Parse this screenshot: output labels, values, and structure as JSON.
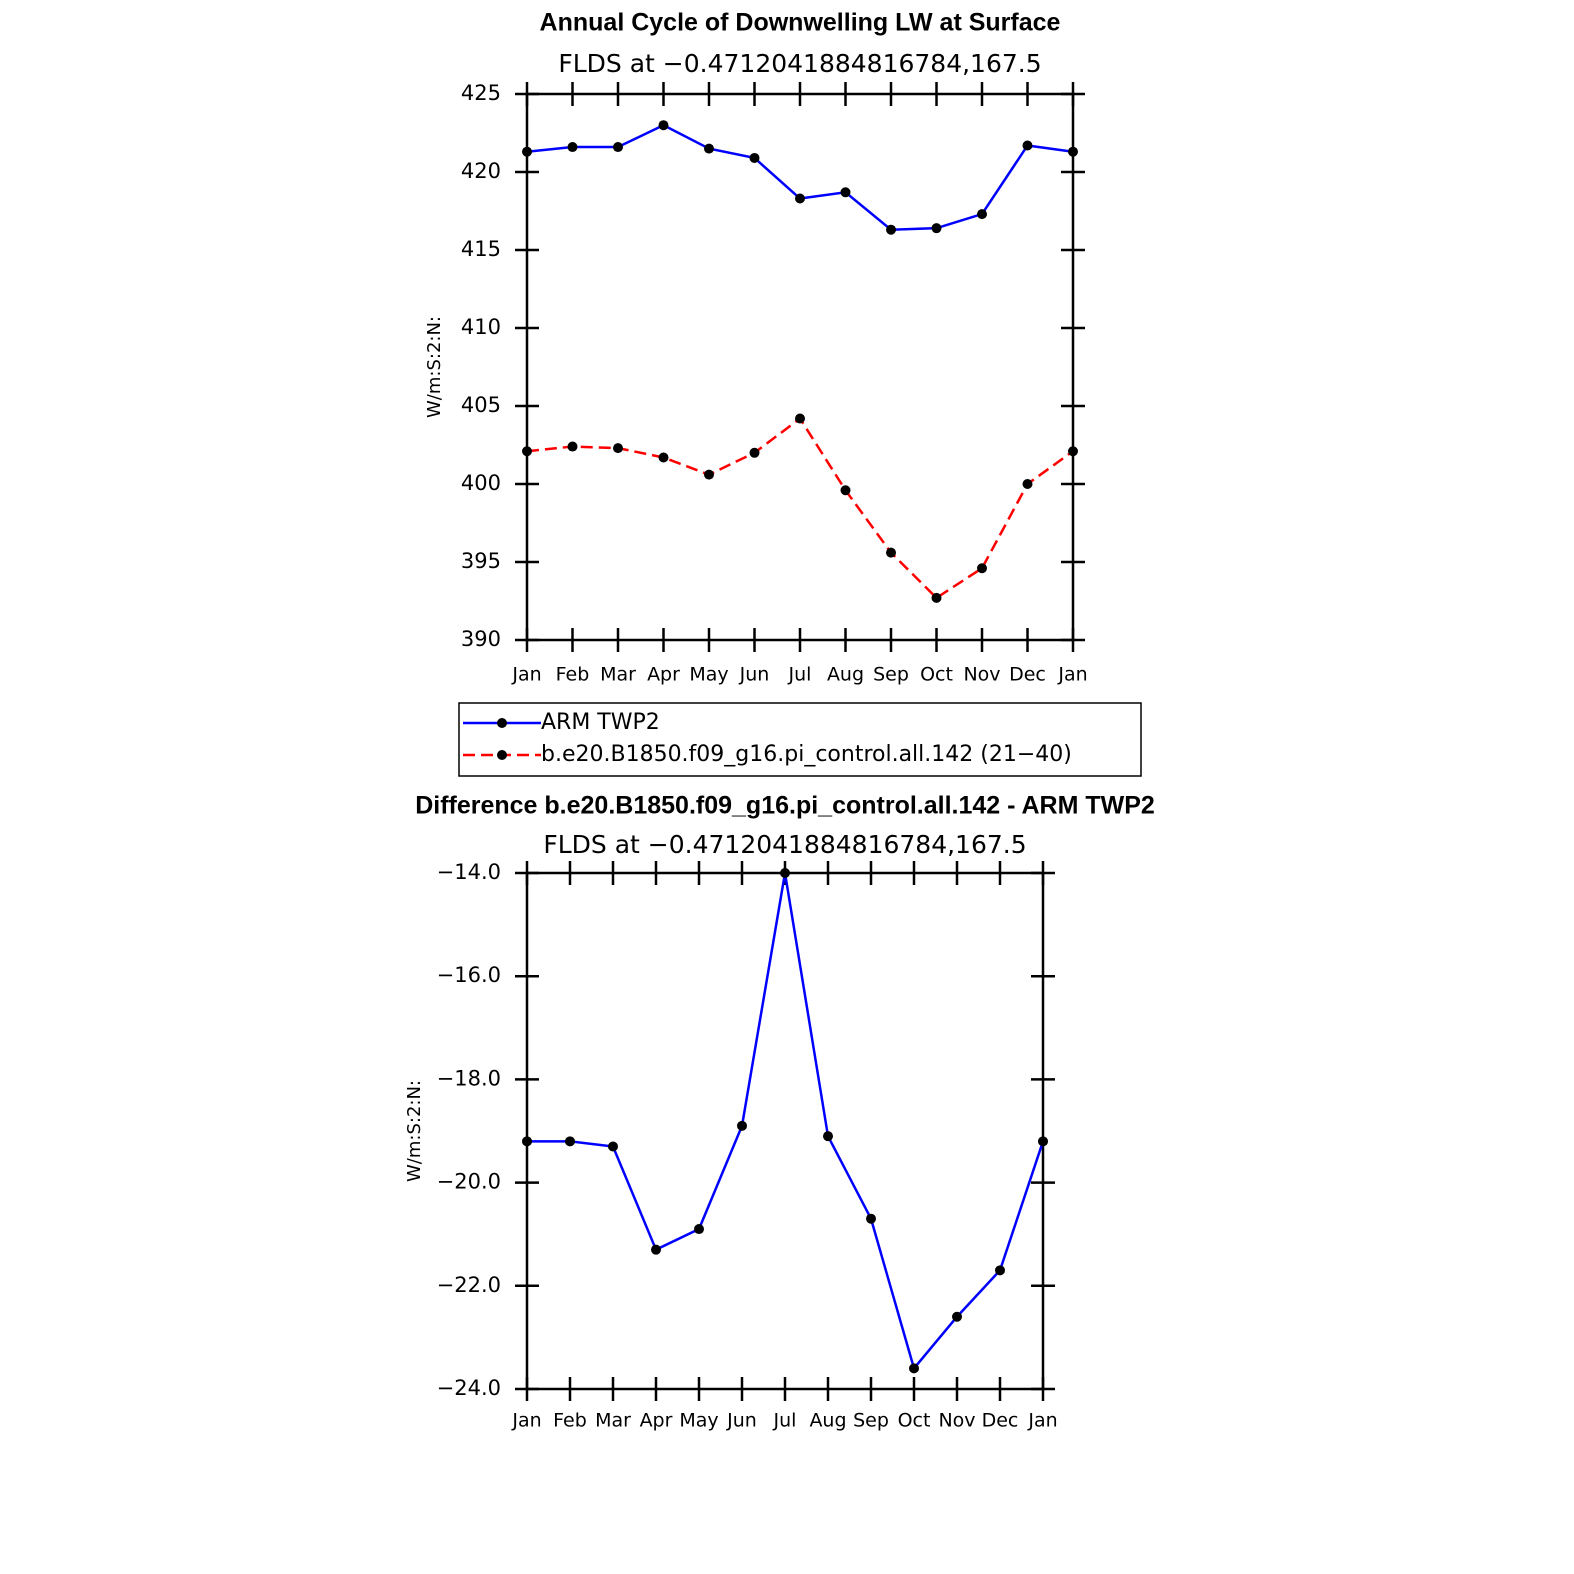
{
  "chart_data": [
    {
      "type": "line",
      "title": "Annual Cycle of Downwelling LW at Surface",
      "subtitle": "FLDS at −0.4712041884816784,167.5",
      "y_label": "W/m:S:2:N:",
      "categories": [
        "Jan",
        "Feb",
        "Mar",
        "Apr",
        "May",
        "Jun",
        "Jul",
        "Aug",
        "Sep",
        "Oct",
        "Nov",
        "Dec",
        "Jan"
      ],
      "series": [
        {
          "name": "ARM TWP2",
          "color": "#0000ff",
          "line_style": "solid",
          "marker": "circle",
          "values": [
            421.3,
            421.6,
            421.6,
            423.0,
            421.5,
            420.9,
            418.3,
            418.7,
            416.3,
            416.4,
            417.3,
            421.7,
            421.3
          ]
        },
        {
          "name": "b.e20.B1850.f09_g16.pi_control.all.142 (21−40)",
          "color": "#ff0000",
          "line_style": "dashed",
          "marker": "circle",
          "values": [
            402.1,
            402.4,
            402.3,
            401.7,
            400.6,
            402.0,
            404.2,
            399.6,
            395.6,
            392.7,
            394.6,
            400.0,
            402.1
          ]
        }
      ],
      "ylim": [
        390,
        425
      ],
      "yticks": [
        390,
        395,
        400,
        405,
        410,
        415,
        420,
        425
      ],
      "legend": "below"
    },
    {
      "type": "line",
      "title": "Difference b.e20.B1850.f09_g16.pi_control.all.142 - ARM TWP2",
      "subtitle": "FLDS at −0.4712041884816784,167.5",
      "y_label": "W/m:S:2:N:",
      "categories": [
        "Jan",
        "Feb",
        "Mar",
        "Apr",
        "May",
        "Jun",
        "Jul",
        "Aug",
        "Sep",
        "Oct",
        "Nov",
        "Dec",
        "Jan"
      ],
      "series": [
        {
          "color": "#0000ff",
          "line_style": "solid",
          "marker": "circle",
          "values": [
            -19.2,
            -19.2,
            -19.3,
            -21.3,
            -20.9,
            -18.9,
            -14.0,
            -19.1,
            -20.7,
            -23.6,
            -22.6,
            -21.7,
            -19.2
          ]
        }
      ],
      "ylim": [
        -24,
        -14
      ],
      "yticks": [
        {
          "value": -24,
          "label": "−24.0"
        },
        {
          "value": -22,
          "label": "−22.0"
        },
        {
          "value": -20,
          "label": "−20.0"
        },
        {
          "value": -18,
          "label": "−18.0"
        },
        {
          "value": -16,
          "label": "−16.0"
        },
        {
          "value": -14,
          "label": "−14.0"
        }
      ]
    }
  ]
}
